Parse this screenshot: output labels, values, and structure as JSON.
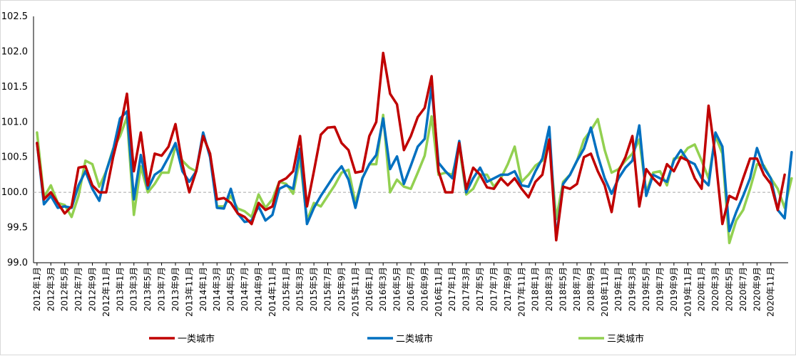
{
  "chart_data": {
    "type": "line",
    "title": "",
    "xlabel": "",
    "ylabel": "",
    "ylim": [
      99.0,
      102.5
    ],
    "yticks": [
      "99.0",
      "99.5",
      "100.0",
      "100.5",
      "101.0",
      "101.5",
      "102.0",
      "102.5"
    ],
    "reference_line": 100.0,
    "grid": false,
    "legend_position": "bottom",
    "x_labels": [
      "2012年1月",
      "2012年3月",
      "2012年5月",
      "2012年7月",
      "2012年9月",
      "2012年11月",
      "2013年1月",
      "2013年3月",
      "2013年5月",
      "2013年7月",
      "2013年9月",
      "2013年11月",
      "2014年1月",
      "2014年3月",
      "2014年5月",
      "2014年7月",
      "2014年9月",
      "2014年11月",
      "2015年1月",
      "2015年3月",
      "2015年5月",
      "2015年7月",
      "2015年9月",
      "2015年11月",
      "2016年1月",
      "2016年3月",
      "2016年5月",
      "2016年7月",
      "2016年9月",
      "2016年11月",
      "2017年1月",
      "2017年3月",
      "2017年5月",
      "2017年7月",
      "2017年9月",
      "2017年11月",
      "2018年1月",
      "2018年3月",
      "2018年5月",
      "2018年7月",
      "2018年9月",
      "2018年11月",
      "2019年1月",
      "2019年3月",
      "2019年5月",
      "2019年7月",
      "2019年9月",
      "2019年11月",
      "2020年1月",
      "2020年3月",
      "2020年5月",
      "2020年7月",
      "2020年9月",
      "2020年11月"
    ],
    "series": [
      {
        "name": "一类城市",
        "color": "#c00000",
        "values": [
          100.7,
          99.9,
          100.0,
          99.85,
          99.7,
          99.8,
          100.35,
          100.37,
          100.1,
          100.0,
          100.0,
          100.5,
          100.9,
          101.4,
          100.3,
          100.85,
          100.1,
          100.55,
          100.52,
          100.65,
          100.97,
          100.4,
          100.0,
          100.3,
          100.8,
          100.55,
          99.9,
          99.92,
          99.85,
          99.7,
          99.65,
          99.55,
          99.85,
          99.75,
          99.8,
          100.15,
          100.2,
          100.3,
          100.8,
          99.8,
          100.3,
          100.82,
          100.92,
          100.93,
          100.7,
          100.6,
          100.28,
          100.3,
          100.8,
          101.0,
          101.98,
          101.4,
          101.25,
          100.6,
          100.8,
          101.07,
          101.2,
          101.65,
          100.3,
          100.0,
          100.0,
          100.7,
          100.05,
          100.35,
          100.25,
          100.07,
          100.05,
          100.2,
          100.1,
          100.2,
          100.05,
          99.93,
          100.15,
          100.25,
          100.75,
          99.32,
          100.08,
          100.05,
          100.12,
          100.5,
          100.55,
          100.3,
          100.1,
          99.72,
          100.3,
          100.5,
          100.8,
          99.8,
          100.33,
          100.2,
          100.1,
          100.4,
          100.3,
          100.5,
          100.45,
          100.2,
          100.05,
          101.23,
          100.5,
          99.55,
          99.95,
          99.9,
          100.2,
          100.48,
          100.48,
          100.25,
          100.12,
          99.75,
          100.25
        ]
      },
      {
        "name": "二类城市",
        "color": "#0070c0",
        "values": [
          100.7,
          99.83,
          99.95,
          99.78,
          99.8,
          99.78,
          100.1,
          100.3,
          100.05,
          99.88,
          100.3,
          100.6,
          101.05,
          101.15,
          99.9,
          100.53,
          100.05,
          100.25,
          100.32,
          100.5,
          100.7,
          100.3,
          100.15,
          100.3,
          100.85,
          100.5,
          99.78,
          99.77,
          100.05,
          99.7,
          99.58,
          99.6,
          99.8,
          99.6,
          99.68,
          100.05,
          100.1,
          100.05,
          100.62,
          99.55,
          99.78,
          99.95,
          100.1,
          100.25,
          100.37,
          100.18,
          99.78,
          100.2,
          100.4,
          100.53,
          101.05,
          100.33,
          100.51,
          100.12,
          100.38,
          100.65,
          100.76,
          101.5,
          100.42,
          100.3,
          100.2,
          100.73,
          100.0,
          100.2,
          100.35,
          100.15,
          100.2,
          100.25,
          100.25,
          100.3,
          100.1,
          100.08,
          100.3,
          100.48,
          100.93,
          99.35,
          100.12,
          100.25,
          100.45,
          100.62,
          100.92,
          100.52,
          100.2,
          99.98,
          100.2,
          100.35,
          100.45,
          100.95,
          99.95,
          100.25,
          100.2,
          100.15,
          100.45,
          100.6,
          100.45,
          100.4,
          100.2,
          100.1,
          100.85,
          100.65,
          99.45,
          99.72,
          99.95,
          100.2,
          100.63,
          100.35,
          100.2,
          99.75,
          99.63,
          100.57
        ]
      },
      {
        "name": "三类城市",
        "color": "#92d050",
        "values": [
          100.85,
          99.93,
          100.1,
          99.85,
          99.82,
          99.65,
          99.95,
          100.45,
          100.4,
          100.08,
          100.3,
          100.62,
          100.8,
          101.07,
          99.68,
          100.37,
          100.0,
          100.12,
          100.28,
          100.28,
          100.65,
          100.45,
          100.35,
          100.3,
          100.8,
          100.55,
          99.8,
          99.8,
          99.95,
          99.77,
          99.73,
          99.65,
          99.97,
          99.78,
          99.9,
          100.15,
          100.12,
          99.98,
          100.48,
          99.6,
          99.85,
          99.8,
          99.95,
          100.1,
          100.28,
          100.32,
          99.85,
          100.2,
          100.4,
          100.4,
          101.1,
          100.0,
          100.18,
          100.08,
          100.05,
          100.28,
          100.52,
          101.08,
          100.25,
          100.28,
          100.25,
          100.65,
          99.97,
          100.05,
          100.25,
          100.25,
          100.08,
          100.2,
          100.4,
          100.65,
          100.15,
          100.25,
          100.38,
          100.45,
          100.75,
          99.62,
          100.15,
          100.25,
          100.45,
          100.75,
          100.88,
          101.04,
          100.6,
          100.28,
          100.33,
          100.45,
          100.55,
          100.75,
          100.0,
          100.28,
          100.3,
          100.1,
          100.48,
          100.5,
          100.63,
          100.68,
          100.45,
          100.2,
          100.8,
          100.55,
          99.28,
          99.6,
          99.75,
          100.05,
          100.4,
          100.38,
          100.2,
          100.05,
          99.78,
          100.2
        ]
      }
    ]
  }
}
